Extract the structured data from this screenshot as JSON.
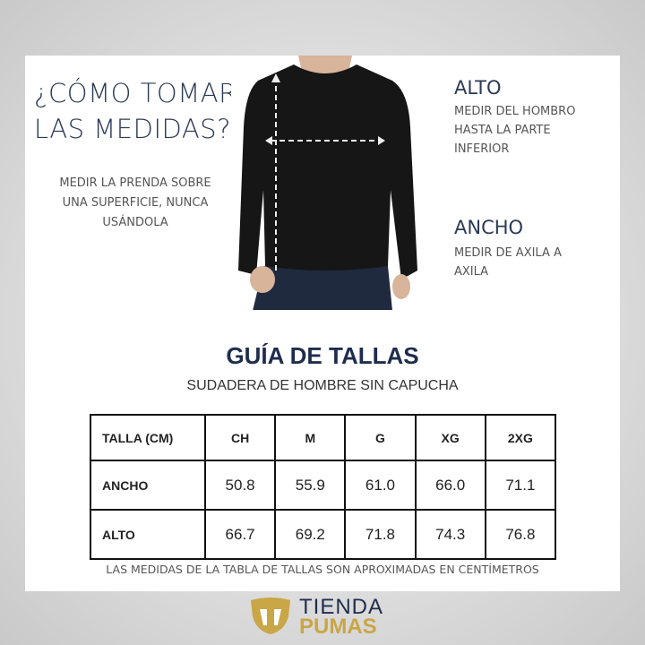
{
  "heading": {
    "line1": "¿CÓMO TOMAR",
    "line2": "LAS MEDIDAS?"
  },
  "note": "MEDIR LA PRENDA SOBRE UNA SUPERFICIE, NUNCA USÁNDOLA",
  "alto": {
    "title": "ALTO",
    "desc": "MEDIR DEL HOMBRO HASTA LA PARTE INFERIOR"
  },
  "ancho": {
    "title": "ANCHO",
    "desc": "MEDIR DE AXILA A AXILA"
  },
  "guide": {
    "title": "GUÍA DE TALLAS",
    "subtitle": "SUDADERA DE HOMBRE SIN CAPUCHA"
  },
  "table": {
    "headers": [
      "TALLA (CM)",
      "CH",
      "M",
      "G",
      "XG",
      "2XG"
    ],
    "rows": [
      {
        "label": "ANCHO",
        "values": [
          "50.8",
          "55.9",
          "61.0",
          "66.0",
          "71.1"
        ]
      },
      {
        "label": "ALTO",
        "values": [
          "66.7",
          "69.2",
          "71.8",
          "74.3",
          "76.8"
        ]
      }
    ]
  },
  "footnote": "LAS MEDIDAS DE LA TABLA DE TALLAS SON APROXIMADAS EN CENTÍMETROS",
  "logo": {
    "line1": "TIENDA",
    "line2": "PUMAS",
    "colors": {
      "navy": "#1f2d4d",
      "gold": "#c9a646"
    }
  }
}
